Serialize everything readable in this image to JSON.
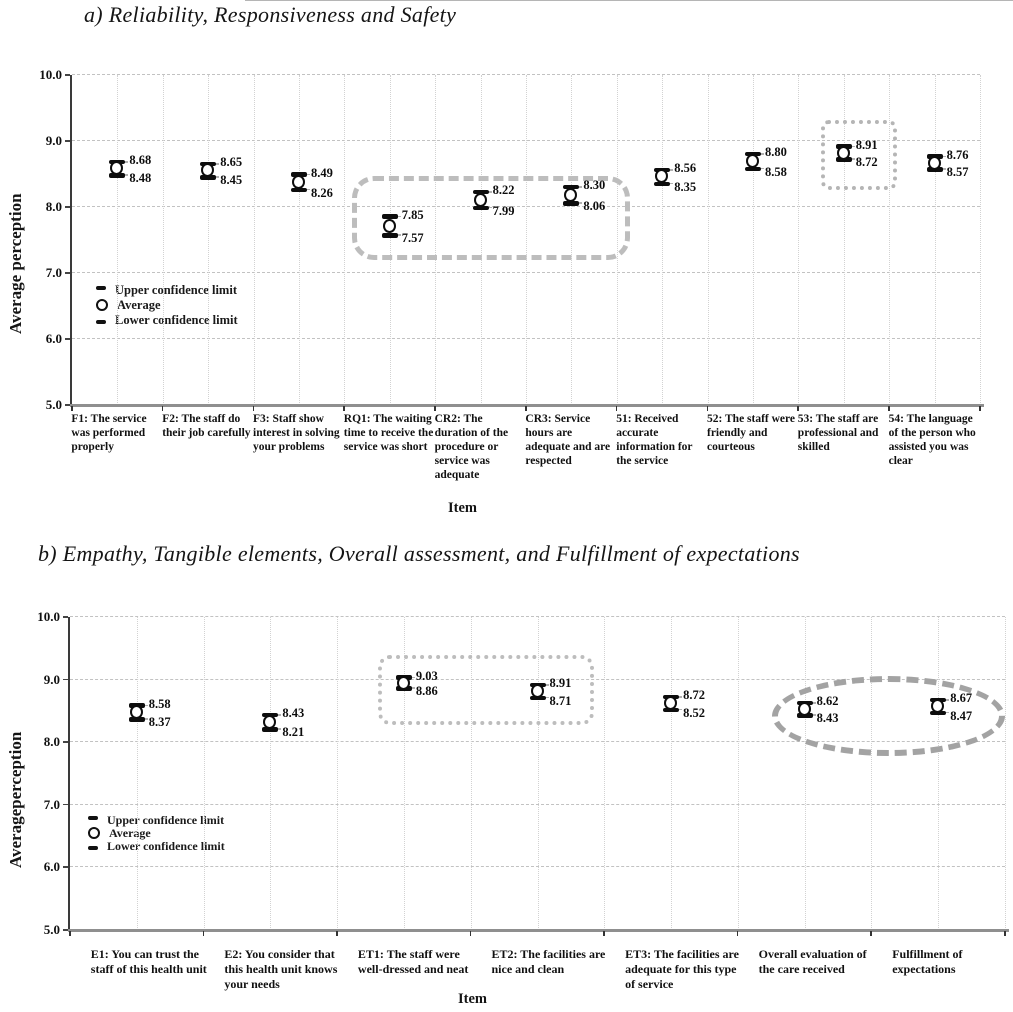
{
  "panels": [
    {
      "id": "a",
      "title": "a) Reliability, Responsiveness and Safety",
      "y_axis_label": "Average perception",
      "x_axis_label": "Item",
      "y_ticks": [
        "10.0",
        "9.0",
        "8.0",
        "7.0",
        "6.0",
        "5.0"
      ],
      "legend": [
        {
          "label": "Upper confidence limit",
          "marker": "upper-limit-dash"
        },
        {
          "label": "Average",
          "marker": "average-circle"
        },
        {
          "label": "Lower confidence limit",
          "marker": "lower-limit-dash"
        }
      ]
    },
    {
      "id": "b",
      "title": "b) Empathy, Tangible elements, Overall assessment, and Fulfillment of expectations",
      "y_axis_label": "Averageperception",
      "x_axis_label": "Item",
      "y_ticks": [
        "10.0",
        "9.0",
        "8.0",
        "7.0",
        "6.0",
        "5.0"
      ],
      "legend": [
        {
          "label": "Upper confidence limit",
          "marker": "upper-limit-dash"
        },
        {
          "label": "Average",
          "marker": "average-circle"
        },
        {
          "label": "Lower confidence limit",
          "marker": "lower-limit-dash"
        }
      ]
    }
  ],
  "chart_data": [
    {
      "type": "scatter",
      "subtype": "mean with upper/lower confidence limits (error-bar points)",
      "title": "a) Reliability, Responsiveness and Safety",
      "xlabel": "Item",
      "ylabel": "Average perception",
      "ylim": [
        5.0,
        10.0
      ],
      "y_tick_step": 1.0,
      "grid": true,
      "legend_position": "inside lower-left",
      "categories": [
        "F1: The service was performed properly",
        "F2: The staff do their job carefully",
        "F3: Staff show interest in solving your problems",
        "RQ1: The waiting time to receive the service was short",
        "CR2: The duration of the procedure or service was adequate",
        "CR3: Service hours are adequate and are respected",
        "51: Received accurate information for the service",
        "52: The staff were friendly and courteous",
        "53: The staff are professional and skilled",
        "54: The language of the person who assisted you was clear"
      ],
      "series": [
        {
          "name": "Upper confidence limit",
          "values": [
            8.68,
            8.65,
            8.49,
            7.85,
            8.22,
            8.3,
            8.56,
            8.8,
            8.91,
            8.76
          ]
        },
        {
          "name": "Lower confidence limit",
          "values": [
            8.48,
            8.45,
            8.26,
            7.57,
            7.99,
            8.06,
            8.35,
            8.58,
            8.72,
            8.57
          ]
        }
      ],
      "average_marker": "open circle drawn midway between the two confidence limits",
      "annotations": [
        {
          "shape": "gray dashed rounded rectangle",
          "encloses": [
            "RQ1",
            "CR2",
            "CR3"
          ]
        },
        {
          "shape": "gray dotted rectangle",
          "encloses": [
            "53"
          ]
        }
      ]
    },
    {
      "type": "scatter",
      "subtype": "mean with upper/lower confidence limits (error-bar points)",
      "title": "b) Empathy, Tangible elements, Overall assessment, and Fulfillment of expectations",
      "xlabel": "Item",
      "ylabel": "Averageperception",
      "ylim": [
        5.0,
        10.0
      ],
      "y_tick_step": 1.0,
      "grid": true,
      "legend_position": "inside lower-left",
      "categories": [
        "E1: You can trust the staff of this health unit",
        "E2: You consider that this health unit knows your needs",
        "ET1: The staff were well-dressed and neat",
        "ET2: The facilities are nice and clean",
        "ET3: The facilities are adequate for this type of service",
        "Overall evaluation of the care received",
        "Fulfillment of expectations"
      ],
      "series": [
        {
          "name": "Upper confidence limit",
          "values": [
            8.58,
            8.43,
            9.03,
            8.91,
            8.72,
            8.62,
            8.67
          ]
        },
        {
          "name": "Lower confidence limit",
          "values": [
            8.37,
            8.21,
            8.86,
            8.71,
            8.52,
            8.43,
            8.47
          ]
        }
      ],
      "average_marker": "open circle drawn midway between the two confidence limits",
      "annotations": [
        {
          "shape": "gray dotted rounded rectangle",
          "encloses": [
            "ET1",
            "ET2"
          ]
        },
        {
          "shape": "gray dashed ellipse",
          "encloses": [
            "Overall evaluation of the care received",
            "Fulfillment of expectations"
          ]
        }
      ]
    }
  ],
  "colors": {
    "marker": "#0d0d0d",
    "gridline": "#c2c2c2",
    "annotation_dashed": "#bdbdbd",
    "annotation_dotted": "#b5b5b5",
    "annotation_ellipse": "#a3a3a3",
    "text": "#1a1a1a"
  }
}
